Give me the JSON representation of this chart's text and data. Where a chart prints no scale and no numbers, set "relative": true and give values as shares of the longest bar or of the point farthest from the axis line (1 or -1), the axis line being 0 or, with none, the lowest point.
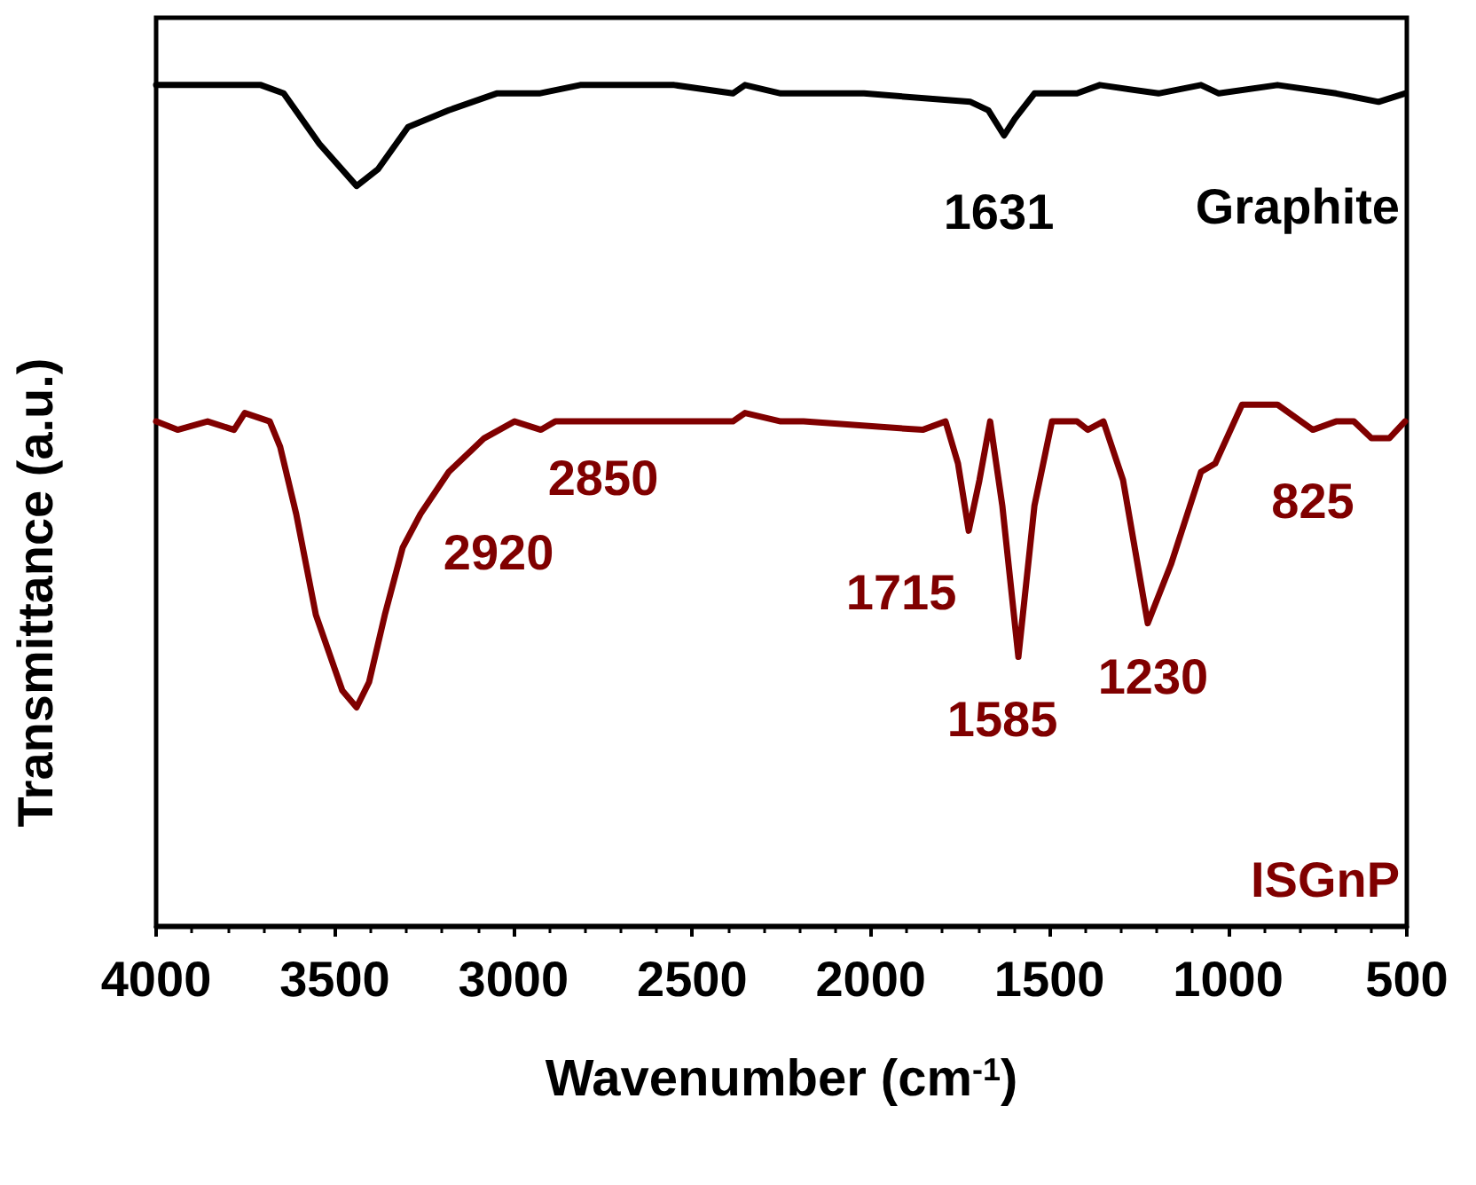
{
  "chart_data": {
    "type": "line",
    "relative": true,
    "xlabel": "Wavenumber (cm$^{-1}$)",
    "ylabel": "Transmittance (a.u.)",
    "xlim": [
      4000,
      500
    ],
    "xticks": [
      4000,
      3500,
      3000,
      2500,
      2000,
      1500,
      1000,
      500
    ],
    "series": [
      {
        "name": "Graphite",
        "color": "#000000",
        "x": [
          4000,
          3707,
          3643,
          3543,
          3439,
          3379,
          3295,
          3181,
          3047,
          2937,
          2928,
          2813,
          2550,
          2386,
          2352,
          2252,
          2019,
          1721,
          1671,
          1627,
          1597,
          1542,
          1423,
          1359,
          1195,
          1076,
          1026,
          862,
          698,
          579,
          505
        ],
        "values": [
          1.0,
          1.0,
          0.99,
          0.93,
          0.88,
          0.9,
          0.95,
          0.97,
          0.99,
          0.99,
          0.99,
          1.0,
          1.0,
          0.99,
          1.0,
          0.99,
          0.99,
          0.98,
          0.97,
          0.94,
          0.96,
          0.99,
          0.99,
          1.0,
          0.99,
          1.0,
          0.99,
          1.0,
          0.99,
          0.98,
          0.99
        ]
      },
      {
        "name": "ISGnP",
        "color": "#800000",
        "x": [
          4000,
          3940,
          3856,
          3782,
          3752,
          3682,
          3653,
          3608,
          3553,
          3479,
          3439,
          3404,
          3360,
          3310,
          3260,
          3181,
          3082,
          2997,
          2923,
          2883,
          2684,
          2386,
          2352,
          2252,
          2188,
          1855,
          1791,
          1756,
          1726,
          1696,
          1666,
          1632,
          1587,
          1542,
          1493,
          1423,
          1393,
          1349,
          1294,
          1225,
          1160,
          1076,
          1036,
          961,
          862,
          763,
          698,
          648,
          599,
          549,
          505
        ],
        "values": [
          0.6,
          0.59,
          0.6,
          0.59,
          0.61,
          0.6,
          0.57,
          0.49,
          0.37,
          0.28,
          0.26,
          0.29,
          0.37,
          0.45,
          0.49,
          0.54,
          0.58,
          0.6,
          0.59,
          0.6,
          0.6,
          0.6,
          0.61,
          0.6,
          0.6,
          0.59,
          0.6,
          0.55,
          0.47,
          0.53,
          0.6,
          0.5,
          0.32,
          0.5,
          0.6,
          0.6,
          0.59,
          0.6,
          0.53,
          0.36,
          0.43,
          0.54,
          0.55,
          0.62,
          0.62,
          0.59,
          0.6,
          0.6,
          0.58,
          0.58,
          0.6
        ]
      }
    ],
    "annotations": [
      {
        "text": "1631",
        "x": 1627,
        "y": 0.94
      },
      {
        "text": "2920",
        "x": 3260,
        "y": 0.49
      },
      {
        "text": "2850",
        "x": 2883,
        "y": 0.6
      },
      {
        "text": "1715",
        "x": 1726,
        "y": 0.47
      },
      {
        "text": "1585",
        "x": 1587,
        "y": 0.32
      },
      {
        "text": "1230",
        "x": 1225,
        "y": 0.36
      },
      {
        "text": "825",
        "x": 763,
        "y": 0.59
      }
    ]
  }
}
